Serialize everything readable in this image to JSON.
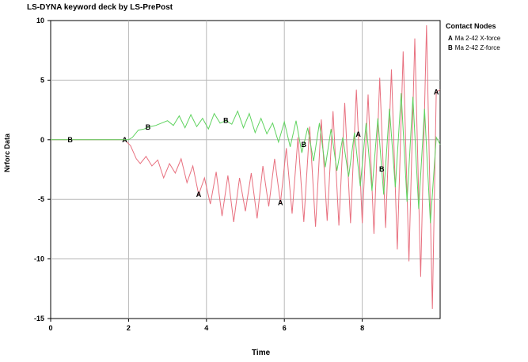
{
  "chart_data": {
    "type": "line",
    "title": "LS-DYNA keyword deck by LS-PrePost",
    "xlabel": "Time",
    "ylabel": "Nrforc Data",
    "xlim": [
      0,
      10
    ],
    "ylim": [
      -15,
      10
    ],
    "xticks": [
      "0",
      "2",
      "4",
      "6",
      "8"
    ],
    "yticks": [
      "10",
      "5",
      "0",
      "-5",
      "-10",
      "-15"
    ],
    "grid": true,
    "legend_title": "Contact Nodes",
    "legend_position": "right",
    "series": [
      {
        "name": "Ma 2-42 X-force",
        "marker": "A",
        "color": "#e8707f",
        "marker_x": [
          1.9,
          3.8,
          5.9,
          7.9,
          9.9
        ],
        "x": [
          0,
          0.5,
          1,
          1.5,
          1.9,
          2.05,
          2.2,
          2.3,
          2.45,
          2.6,
          2.75,
          2.9,
          3.05,
          3.2,
          3.35,
          3.5,
          3.65,
          3.8,
          3.95,
          4.1,
          4.25,
          4.4,
          4.55,
          4.7,
          4.85,
          5.0,
          5.15,
          5.3,
          5.45,
          5.6,
          5.75,
          5.9,
          6.05,
          6.2,
          6.35,
          6.5,
          6.65,
          6.8,
          6.95,
          7.1,
          7.25,
          7.4,
          7.55,
          7.7,
          7.85,
          8.0,
          8.15,
          8.3,
          8.45,
          8.6,
          8.75,
          8.9,
          9.05,
          9.2,
          9.35,
          9.5,
          9.65,
          9.8,
          9.9,
          10.0
        ],
        "y": [
          0,
          0,
          0,
          0,
          0,
          -0.5,
          -1.6,
          -2.0,
          -1.4,
          -2.2,
          -1.7,
          -3.2,
          -2.0,
          -2.8,
          -1.6,
          -3.6,
          -2.2,
          -4.6,
          -3.2,
          -5.4,
          -2.7,
          -6.4,
          -3.0,
          -6.9,
          -3.2,
          -6.0,
          -2.8,
          -6.6,
          -2.2,
          -5.6,
          -1.6,
          -5.3,
          -0.7,
          -6.2,
          0.2,
          -6.9,
          1.1,
          -7.3,
          1.7,
          -6.8,
          2.4,
          -7.2,
          3.1,
          -7.0,
          4.2,
          -7.0,
          3.8,
          -7.9,
          5.2,
          -7.4,
          5.9,
          -9.2,
          7.4,
          -10.2,
          8.5,
          -11.5,
          9.6,
          -14.2,
          4.0,
          4.2
        ]
      },
      {
        "name": "Ma 2-42 Z-force",
        "marker": "B",
        "color": "#5fd35f",
        "marker_x": [
          0.5,
          2.5,
          4.5,
          6.5,
          8.5
        ],
        "x": [
          0,
          0.5,
          1,
          1.5,
          2.0,
          2.1,
          2.25,
          2.4,
          2.55,
          2.7,
          2.85,
          3.0,
          3.15,
          3.3,
          3.45,
          3.6,
          3.75,
          3.9,
          4.05,
          4.2,
          4.35,
          4.5,
          4.65,
          4.8,
          4.95,
          5.1,
          5.25,
          5.4,
          5.55,
          5.7,
          5.85,
          6.0,
          6.15,
          6.3,
          6.45,
          6.6,
          6.75,
          6.9,
          7.05,
          7.2,
          7.35,
          7.5,
          7.65,
          7.8,
          7.95,
          8.1,
          8.25,
          8.4,
          8.55,
          8.7,
          8.85,
          9.0,
          9.15,
          9.3,
          9.45,
          9.6,
          9.75,
          9.9,
          10.0
        ],
        "y": [
          0,
          0,
          0,
          0,
          0,
          0.2,
          0.8,
          0.9,
          1.1,
          1.2,
          1.4,
          1.6,
          1.2,
          2.0,
          1.0,
          2.1,
          1.1,
          1.8,
          0.9,
          2.2,
          1.4,
          1.6,
          1.3,
          2.4,
          1.0,
          2.2,
          0.6,
          1.8,
          0.5,
          1.4,
          -0.2,
          1.5,
          -0.6,
          1.6,
          -1.1,
          1.0,
          -1.8,
          1.4,
          -2.3,
          0.9,
          -2.6,
          0.2,
          -3.1,
          0.6,
          -3.9,
          1.4,
          -4.3,
          1.8,
          -4.6,
          2.6,
          -4.0,
          3.9,
          -5.2,
          3.6,
          -5.8,
          2.6,
          -7.0,
          0.2,
          -0.4
        ]
      }
    ]
  }
}
